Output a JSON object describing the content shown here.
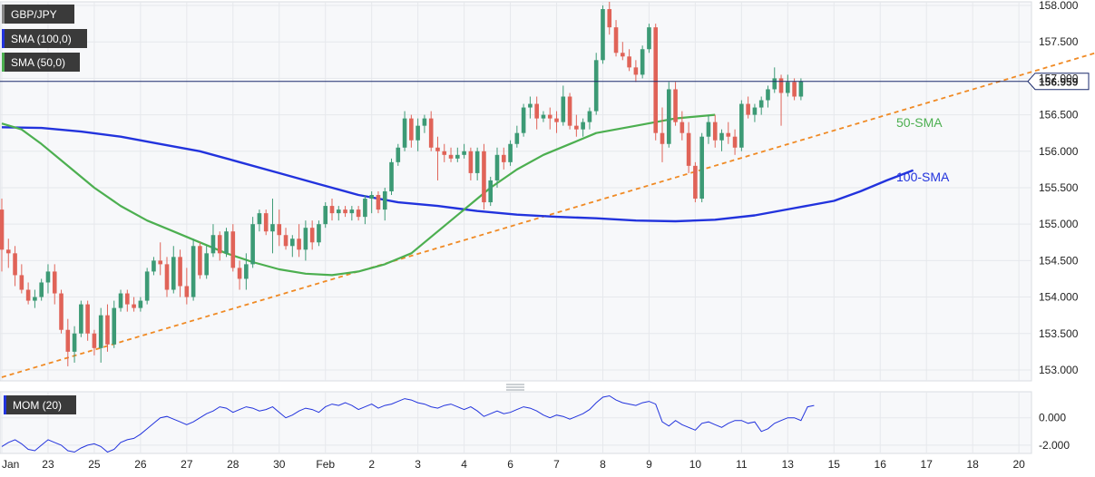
{
  "colors": {
    "background": "#ffffff",
    "plot_background": "#f7f8fa",
    "grid": "#e6e8ec",
    "bull": "#3c9a75",
    "bear": "#e06358",
    "sma100": "#2233dd",
    "sma50": "#4caf50",
    "trendline": "#f08a24",
    "momentum": "#2233dd",
    "price_line": "#1a2a6c",
    "legend_bg": "#3a3a3a"
  },
  "legend": {
    "symbol": "GBP/JPY",
    "sma100": "SMA (100,0)",
    "sma50": "SMA (50,0)",
    "mom": "MOM (20)"
  },
  "annotations": {
    "sma50_label": "50-SMA",
    "sma100_label": "100-SMA",
    "last_price": "156.959"
  },
  "chart_data": [
    {
      "type": "candlestick",
      "title": "GBP/JPY",
      "x_ticks": [
        "Jan",
        "23",
        "25",
        "26",
        "27",
        "28",
        "30",
        "Feb",
        "2",
        "3",
        "4",
        "6",
        "7",
        "8",
        "9",
        "10",
        "11",
        "13",
        "15",
        "16",
        "17",
        "18",
        "20"
      ],
      "y_ticks": [
        "158.000",
        "157.500",
        "157.000",
        "156.500",
        "156.000",
        "155.500",
        "155.000",
        "154.500",
        "154.000",
        "153.500",
        "153.000"
      ],
      "ylim": [
        152.85,
        158.05
      ],
      "last_price": 156.959,
      "candles": [
        [
          155.2,
          155.35,
          154.35,
          154.65
        ],
        [
          154.65,
          154.8,
          154.4,
          154.6
        ],
        [
          154.6,
          154.7,
          154.15,
          154.3
        ],
        [
          154.3,
          154.45,
          154.05,
          154.1
        ],
        [
          154.1,
          154.2,
          153.9,
          153.95
        ],
        [
          153.95,
          154.1,
          153.85,
          154.0
        ],
        [
          154.0,
          154.25,
          153.95,
          154.2
        ],
        [
          154.2,
          154.45,
          154.05,
          154.35
        ],
        [
          154.35,
          154.45,
          153.9,
          154.05
        ],
        [
          154.05,
          154.1,
          153.5,
          153.55
        ],
        [
          153.55,
          153.7,
          153.05,
          153.25
        ],
        [
          153.25,
          153.6,
          153.1,
          153.5
        ],
        [
          153.5,
          153.95,
          153.45,
          153.9
        ],
        [
          153.9,
          153.95,
          153.4,
          153.5
        ],
        [
          153.5,
          153.55,
          153.2,
          153.3
        ],
        [
          153.3,
          153.85,
          153.1,
          153.75
        ],
        [
          153.75,
          153.9,
          153.25,
          153.35
        ],
        [
          153.35,
          153.95,
          153.3,
          153.85
        ],
        [
          153.85,
          154.1,
          153.8,
          154.05
        ],
        [
          154.05,
          154.1,
          153.8,
          153.9
        ],
        [
          153.9,
          154.0,
          153.8,
          153.85
        ],
        [
          153.85,
          154.0,
          153.8,
          153.95
        ],
        [
          153.95,
          154.4,
          153.9,
          154.35
        ],
        [
          154.35,
          154.55,
          154.3,
          154.5
        ],
        [
          154.5,
          154.75,
          154.3,
          154.45
        ],
        [
          154.45,
          154.55,
          154.0,
          154.1
        ],
        [
          154.1,
          154.7,
          154.05,
          154.55
        ],
        [
          154.55,
          154.65,
          154.0,
          154.15
        ],
        [
          154.15,
          154.4,
          153.9,
          154.0
        ],
        [
          154.0,
          154.8,
          153.95,
          154.7
        ],
        [
          154.7,
          154.75,
          154.25,
          154.3
        ],
        [
          154.3,
          154.7,
          154.25,
          154.6
        ],
        [
          154.6,
          155.0,
          154.55,
          154.85
        ],
        [
          154.85,
          154.9,
          154.5,
          154.6
        ],
        [
          154.6,
          154.95,
          154.55,
          154.9
        ],
        [
          154.9,
          155.0,
          154.35,
          154.4
        ],
        [
          154.4,
          154.5,
          154.1,
          154.25
        ],
        [
          154.25,
          154.6,
          154.1,
          154.45
        ],
        [
          154.45,
          155.1,
          154.4,
          155.0
        ],
        [
          155.0,
          155.2,
          154.9,
          155.15
        ],
        [
          155.15,
          155.2,
          154.85,
          154.9
        ],
        [
          154.9,
          155.35,
          154.6,
          155.0
        ],
        [
          155.0,
          155.2,
          154.7,
          154.85
        ],
        [
          154.85,
          154.95,
          154.65,
          154.7
        ],
        [
          154.7,
          154.85,
          154.55,
          154.8
        ],
        [
          154.8,
          155.0,
          154.55,
          154.65
        ],
        [
          154.65,
          155.05,
          154.5,
          154.95
        ],
        [
          154.95,
          155.05,
          154.65,
          154.75
        ],
        [
          154.75,
          155.05,
          154.7,
          155.0
        ],
        [
          155.0,
          155.3,
          154.95,
          155.25
        ],
        [
          155.25,
          155.35,
          155.05,
          155.15
        ],
        [
          155.15,
          155.25,
          155.05,
          155.2
        ],
        [
          155.2,
          155.25,
          155.1,
          155.15
        ],
        [
          155.15,
          155.25,
          155.05,
          155.2
        ],
        [
          155.2,
          155.25,
          155.05,
          155.1
        ],
        [
          155.1,
          155.4,
          155.0,
          155.35
        ],
        [
          155.35,
          155.45,
          155.15,
          155.4
        ],
        [
          155.4,
          155.45,
          155.15,
          155.2
        ],
        [
          155.2,
          155.5,
          155.05,
          155.45
        ],
        [
          155.45,
          155.9,
          155.4,
          155.85
        ],
        [
          155.85,
          156.1,
          155.8,
          156.05
        ],
        [
          156.05,
          156.55,
          156.0,
          156.45
        ],
        [
          156.45,
          156.5,
          156.05,
          156.15
        ],
        [
          156.15,
          156.45,
          156.0,
          156.35
        ],
        [
          156.35,
          156.5,
          156.25,
          156.45
        ],
        [
          156.45,
          156.55,
          156.0,
          156.05
        ],
        [
          156.05,
          156.2,
          155.6,
          156.0
        ],
        [
          156.0,
          156.1,
          155.85,
          155.95
        ],
        [
          155.95,
          156.05,
          155.85,
          155.9
        ],
        [
          155.9,
          156.05,
          155.85,
          155.95
        ],
        [
          155.95,
          156.1,
          155.9,
          156.0
        ],
        [
          156.0,
          156.05,
          155.6,
          155.7
        ],
        [
          155.7,
          156.05,
          155.6,
          156.0
        ],
        [
          156.0,
          156.1,
          155.2,
          155.3
        ],
        [
          155.3,
          155.65,
          155.25,
          155.6
        ],
        [
          155.6,
          156.05,
          155.5,
          155.95
        ],
        [
          155.95,
          156.05,
          155.75,
          155.85
        ],
        [
          155.85,
          156.15,
          155.8,
          156.1
        ],
        [
          156.1,
          156.35,
          156.05,
          156.25
        ],
        [
          156.25,
          156.65,
          156.2,
          156.6
        ],
        [
          156.6,
          156.75,
          156.45,
          156.65
        ],
        [
          156.65,
          156.75,
          156.3,
          156.45
        ],
        [
          156.45,
          156.55,
          156.4,
          156.5
        ],
        [
          156.5,
          156.6,
          156.3,
          156.45
        ],
        [
          156.45,
          156.55,
          156.25,
          156.4
        ],
        [
          156.4,
          156.9,
          156.35,
          156.75
        ],
        [
          156.75,
          156.8,
          156.3,
          156.35
        ],
        [
          156.35,
          156.5,
          156.2,
          156.3
        ],
        [
          156.3,
          156.45,
          156.2,
          156.4
        ],
        [
          156.4,
          156.6,
          156.3,
          156.55
        ],
        [
          156.55,
          157.35,
          156.5,
          157.25
        ],
        [
          157.25,
          158.0,
          157.2,
          157.95
        ],
        [
          157.95,
          158.05,
          157.6,
          157.7
        ],
        [
          157.7,
          157.8,
          157.3,
          157.35
        ],
        [
          157.35,
          157.5,
          157.25,
          157.3
        ],
        [
          157.3,
          157.4,
          157.1,
          157.15
        ],
        [
          157.15,
          157.25,
          156.95,
          157.05
        ],
        [
          157.05,
          157.45,
          157.0,
          157.4
        ],
        [
          157.4,
          157.75,
          157.35,
          157.7
        ],
        [
          157.7,
          157.75,
          156.15,
          156.25
        ],
        [
          156.25,
          156.6,
          155.85,
          156.1
        ],
        [
          156.1,
          156.95,
          156.05,
          156.85
        ],
        [
          156.85,
          156.95,
          156.35,
          156.4
        ],
        [
          156.4,
          156.55,
          156.15,
          156.25
        ],
        [
          156.25,
          156.4,
          155.7,
          155.8
        ],
        [
          155.8,
          155.85,
          155.3,
          155.35
        ],
        [
          155.35,
          156.25,
          155.3,
          156.2
        ],
        [
          156.2,
          156.5,
          156.1,
          156.4
        ],
        [
          156.4,
          156.5,
          156.05,
          156.15
        ],
        [
          156.15,
          156.3,
          156.0,
          156.25
        ],
        [
          156.25,
          156.4,
          156.1,
          156.2
        ],
        [
          156.2,
          156.3,
          155.95,
          156.05
        ],
        [
          156.05,
          156.7,
          156.0,
          156.65
        ],
        [
          156.65,
          156.75,
          156.45,
          156.5
        ],
        [
          156.5,
          156.65,
          156.4,
          156.6
        ],
        [
          156.6,
          156.75,
          156.5,
          156.7
        ],
        [
          156.7,
          156.9,
          156.6,
          156.85
        ],
        [
          156.85,
          157.15,
          156.8,
          157.0
        ],
        [
          157.0,
          157.05,
          156.35,
          156.8
        ],
        [
          156.8,
          157.05,
          156.75,
          156.95
        ],
        [
          156.95,
          157.0,
          156.7,
          156.75
        ],
        [
          156.75,
          157.0,
          156.7,
          156.959
        ]
      ],
      "sma100": {
        "name": "100-SMA",
        "values": [
          [
            0,
            156.33
          ],
          [
            6,
            156.32
          ],
          [
            12,
            156.27
          ],
          [
            18,
            156.2
          ],
          [
            24,
            156.1
          ],
          [
            30,
            156.0
          ],
          [
            36,
            155.85
          ],
          [
            42,
            155.7
          ],
          [
            48,
            155.55
          ],
          [
            54,
            155.4
          ],
          [
            60,
            155.3
          ],
          [
            66,
            155.25
          ],
          [
            72,
            155.18
          ],
          [
            78,
            155.13
          ],
          [
            84,
            155.1
          ],
          [
            90,
            155.08
          ],
          [
            96,
            155.05
          ],
          [
            102,
            155.04
          ],
          [
            108,
            155.06
          ],
          [
            114,
            155.12
          ],
          [
            120,
            155.22
          ],
          [
            126,
            155.32
          ],
          [
            130,
            155.45
          ],
          [
            134,
            155.6
          ],
          [
            138,
            155.74
          ]
        ]
      },
      "sma50": {
        "name": "50-SMA",
        "values": [
          [
            0,
            156.38
          ],
          [
            3,
            156.3
          ],
          [
            6,
            156.1
          ],
          [
            10,
            155.8
          ],
          [
            14,
            155.5
          ],
          [
            18,
            155.25
          ],
          [
            22,
            155.05
          ],
          [
            26,
            154.9
          ],
          [
            30,
            154.75
          ],
          [
            34,
            154.6
          ],
          [
            38,
            154.48
          ],
          [
            42,
            154.38
          ],
          [
            46,
            154.32
          ],
          [
            50,
            154.3
          ],
          [
            54,
            154.35
          ],
          [
            58,
            154.45
          ],
          [
            62,
            154.6
          ],
          [
            66,
            154.9
          ],
          [
            70,
            155.2
          ],
          [
            74,
            155.5
          ],
          [
            78,
            155.75
          ],
          [
            82,
            155.95
          ],
          [
            86,
            156.1
          ],
          [
            90,
            156.25
          ],
          [
            96,
            156.35
          ],
          [
            102,
            156.45
          ],
          [
            108,
            156.5
          ]
        ]
      },
      "trendline": {
        "start": [
          0,
          152.9
        ],
        "end": [
          169,
          157.44
        ]
      }
    },
    {
      "type": "line",
      "title": "MOM (20)",
      "y_ticks": [
        "0.000",
        "-2.000"
      ],
      "ylim": [
        -2.6,
        1.9
      ],
      "series": [
        {
          "name": "MOM (20)",
          "values": [
            -2.1,
            -1.8,
            -1.6,
            -1.9,
            -2.3,
            -2.4,
            -2.0,
            -1.6,
            -1.8,
            -2.0,
            -2.4,
            -2.5,
            -2.2,
            -2.0,
            -1.9,
            -2.1,
            -2.5,
            -2.3,
            -1.8,
            -1.6,
            -1.5,
            -1.2,
            -0.8,
            -0.4,
            0.0,
            0.1,
            -0.1,
            -0.3,
            -0.5,
            -0.3,
            0.0,
            0.3,
            0.5,
            0.8,
            0.7,
            0.4,
            0.6,
            0.8,
            0.7,
            0.5,
            0.6,
            0.8,
            0.4,
            0.0,
            0.2,
            0.5,
            0.7,
            0.6,
            0.4,
            0.8,
            1.0,
            0.9,
            1.1,
            0.9,
            0.6,
            0.8,
            1.0,
            0.7,
            0.9,
            1.0,
            1.2,
            1.4,
            1.3,
            1.1,
            1.0,
            0.8,
            0.7,
            0.9,
            1.0,
            0.8,
            0.6,
            0.8,
            0.5,
            0.1,
            0.3,
            0.5,
            0.3,
            0.4,
            0.6,
            0.8,
            0.7,
            0.5,
            0.2,
            0.0,
            0.2,
            0.1,
            -0.1,
            0.1,
            0.3,
            0.6,
            1.1,
            1.5,
            1.6,
            1.3,
            1.1,
            1.0,
            0.9,
            1.1,
            1.2,
            1.0,
            -0.3,
            -0.6,
            -0.2,
            -0.5,
            -0.7,
            -0.9,
            -0.4,
            -0.3,
            -0.5,
            -0.7,
            -0.4,
            -0.2,
            -0.2,
            -0.4,
            -0.3,
            -1.0,
            -0.8,
            -0.4,
            -0.2,
            0.0,
            0.0,
            -0.2,
            0.8,
            0.9
          ]
        }
      ]
    }
  ]
}
